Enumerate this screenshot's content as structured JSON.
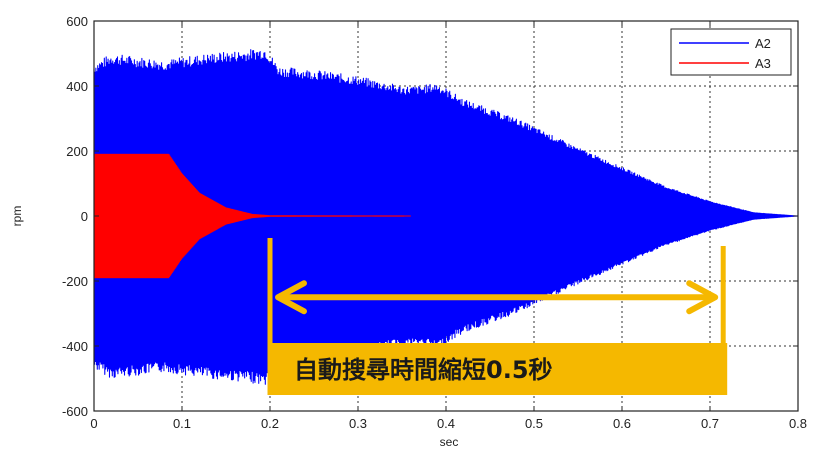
{
  "chart_data": {
    "type": "line",
    "title": "",
    "xlabel": "sec",
    "ylabel": "rpm",
    "xlim": [
      0,
      0.8
    ],
    "ylim": [
      -600,
      600
    ],
    "x_ticks": [
      "0",
      "0.1",
      "0.2",
      "0.3",
      "0.4",
      "0.5",
      "0.6",
      "0.7",
      "0.8"
    ],
    "y_ticks": [
      "600",
      "400",
      "200",
      "0",
      "-200",
      "-400",
      "-600"
    ],
    "grid": true,
    "legend_position": "top-right",
    "series": [
      {
        "name": "A2",
        "color": "#0000ff",
        "style": "oscillation envelope",
        "envelope": [
          {
            "x": 0.0,
            "amp": 470
          },
          {
            "x": 0.02,
            "amp": 500
          },
          {
            "x": 0.08,
            "amp": 480
          },
          {
            "x": 0.13,
            "amp": 500
          },
          {
            "x": 0.17,
            "amp": 510
          },
          {
            "x": 0.195,
            "amp": 520
          },
          {
            "x": 0.21,
            "amp": 460
          },
          {
            "x": 0.25,
            "amp": 450
          },
          {
            "x": 0.3,
            "amp": 430
          },
          {
            "x": 0.35,
            "amp": 400
          },
          {
            "x": 0.37,
            "amp": 400
          },
          {
            "x": 0.39,
            "amp": 410
          },
          {
            "x": 0.42,
            "amp": 360
          },
          {
            "x": 0.48,
            "amp": 300
          },
          {
            "x": 0.55,
            "amp": 210
          },
          {
            "x": 0.6,
            "amp": 150
          },
          {
            "x": 0.65,
            "amp": 90
          },
          {
            "x": 0.7,
            "amp": 45
          },
          {
            "x": 0.75,
            "amp": 10
          },
          {
            "x": 0.8,
            "amp": 0
          }
        ]
      },
      {
        "name": "A3",
        "color": "#ff0000",
        "style": "oscillation envelope",
        "envelope": [
          {
            "x": 0.0,
            "amp": 190
          },
          {
            "x": 0.085,
            "amp": 190
          },
          {
            "x": 0.1,
            "amp": 130
          },
          {
            "x": 0.12,
            "amp": 70
          },
          {
            "x": 0.15,
            "amp": 25
          },
          {
            "x": 0.18,
            "amp": 5
          },
          {
            "x": 0.2,
            "amp": 1
          },
          {
            "x": 0.36,
            "amp": 0
          }
        ]
      }
    ],
    "annotations": {
      "bracket_start_x": 0.2,
      "bracket_end_x": 0.715,
      "arrow_y": -250,
      "label": "自動搜尋時間縮短0.5秒",
      "color": "#f5b800"
    }
  }
}
